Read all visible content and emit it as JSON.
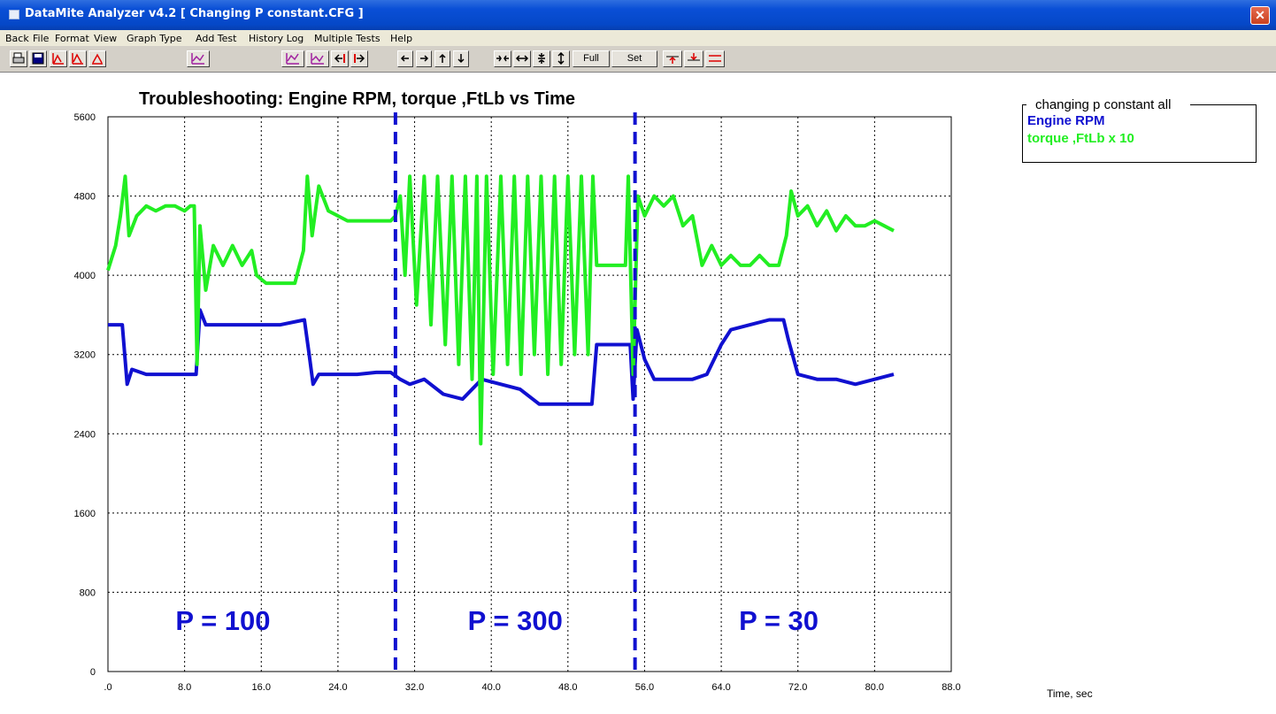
{
  "window": {
    "title": "DataMite Analyzer v4.2  [ Changing P constant.CFG ]",
    "close_glyph": "✕"
  },
  "menu": [
    "Back",
    "File",
    "Format",
    "View",
    "Graph Type",
    "Add Test",
    "History Log",
    "Multiple Tests",
    "Help"
  ],
  "toolbar": {
    "full_view_label": "Full View",
    "set_scales_label": "Set Scales",
    "icons": [
      "print-icon",
      "save-icon",
      "graph-red-a-icon",
      "graph-red-b-icon",
      "graph-red-c-icon",
      "graph-purple-icon",
      "graph-zoom-a-icon",
      "graph-zoom-b-icon",
      "nav-left-bar-icon",
      "nav-right-bar-icon",
      "arrow-left-icon",
      "arrow-right-icon",
      "arrow-up-icon",
      "arrow-down-icon",
      "compress-horizontal-icon",
      "expand-horizontal-icon",
      "compress-vertical-icon",
      "expand-vertical-icon",
      "marker-a-icon",
      "marker-b-icon",
      "marker-c-icon"
    ]
  },
  "legend": {
    "title": "changing p constant   all",
    "entries": [
      {
        "label": "Engine RPM",
        "color": "#1010d0"
      },
      {
        "label": "torque ,FtLb x 10",
        "color": "#22ee22"
      }
    ]
  },
  "chart_data": {
    "type": "line",
    "title": "Troubleshooting: Engine RPM, torque ,FtLb vs Time",
    "xlabel": "Time, sec",
    "ylabel": "",
    "xlim": [
      0,
      88
    ],
    "ylim": [
      0,
      5600
    ],
    "x_ticks": [
      ".0",
      "8.0",
      "16.0",
      "24.0",
      "32.0",
      "40.0",
      "48.0",
      "56.0",
      "64.0",
      "72.0",
      "80.0",
      "88.0"
    ],
    "y_ticks": [
      "0",
      "800",
      "1600",
      "2400",
      "3200",
      "4000",
      "4800",
      "5600"
    ],
    "grid": true,
    "series": [
      {
        "name": "Engine RPM",
        "color": "#1010d0",
        "points": [
          [
            0,
            3500
          ],
          [
            1.5,
            3500
          ],
          [
            2,
            2900
          ],
          [
            2.5,
            3050
          ],
          [
            4,
            3000
          ],
          [
            6,
            3000
          ],
          [
            8,
            3000
          ],
          [
            9.2,
            3000
          ],
          [
            9.6,
            3650
          ],
          [
            10.2,
            3500
          ],
          [
            12,
            3500
          ],
          [
            14,
            3500
          ],
          [
            16,
            3500
          ],
          [
            18,
            3500
          ],
          [
            20.5,
            3550
          ],
          [
            21,
            3200
          ],
          [
            21.4,
            2900
          ],
          [
            22,
            3000
          ],
          [
            24,
            3000
          ],
          [
            26,
            3000
          ],
          [
            28,
            3020
          ],
          [
            29.5,
            3020
          ],
          [
            30.5,
            2950
          ],
          [
            31.5,
            2900
          ],
          [
            33,
            2950
          ],
          [
            35,
            2800
          ],
          [
            37,
            2750
          ],
          [
            39,
            2950
          ],
          [
            41,
            2900
          ],
          [
            43,
            2850
          ],
          [
            45,
            2700
          ],
          [
            47,
            2700
          ],
          [
            49,
            2700
          ],
          [
            50.5,
            2700
          ],
          [
            51,
            3300
          ],
          [
            53,
            3300
          ],
          [
            54.5,
            3300
          ],
          [
            54.8,
            2750
          ],
          [
            55.2,
            3450
          ],
          [
            56,
            3150
          ],
          [
            57,
            2950
          ],
          [
            59,
            2950
          ],
          [
            61,
            2950
          ],
          [
            62.5,
            3000
          ],
          [
            64,
            3300
          ],
          [
            65,
            3450
          ],
          [
            67,
            3500
          ],
          [
            69,
            3550
          ],
          [
            70.5,
            3550
          ],
          [
            71,
            3350
          ],
          [
            72,
            3000
          ],
          [
            74,
            2950
          ],
          [
            76,
            2950
          ],
          [
            78,
            2900
          ],
          [
            80,
            2950
          ],
          [
            82,
            3000
          ]
        ]
      },
      {
        "name": "torque ,FtLb x 10",
        "color": "#22ee22",
        "points": [
          [
            0,
            4050
          ],
          [
            0.8,
            4300
          ],
          [
            1.3,
            4600
          ],
          [
            1.8,
            5000
          ],
          [
            2.2,
            4400
          ],
          [
            3,
            4600
          ],
          [
            4,
            4700
          ],
          [
            5,
            4650
          ],
          [
            6,
            4700
          ],
          [
            7,
            4700
          ],
          [
            8,
            4650
          ],
          [
            8.6,
            4700
          ],
          [
            9,
            4700
          ],
          [
            9.3,
            3100
          ],
          [
            9.6,
            4500
          ],
          [
            10.2,
            3850
          ],
          [
            11,
            4300
          ],
          [
            12,
            4100
          ],
          [
            13,
            4300
          ],
          [
            14,
            4100
          ],
          [
            15,
            4250
          ],
          [
            15.5,
            4000
          ],
          [
            16.5,
            3920
          ],
          [
            18,
            3920
          ],
          [
            19.5,
            3920
          ],
          [
            20.4,
            4250
          ],
          [
            20.8,
            5000
          ],
          [
            21.3,
            4400
          ],
          [
            22,
            4900
          ],
          [
            23,
            4650
          ],
          [
            24,
            4600
          ],
          [
            25,
            4550
          ],
          [
            26,
            4550
          ],
          [
            27,
            4550
          ],
          [
            28,
            4550
          ],
          [
            29.5,
            4550
          ],
          [
            30,
            4600
          ],
          [
            30.5,
            4800
          ],
          [
            31,
            4000
          ],
          [
            31.5,
            5000
          ],
          [
            32.2,
            3700
          ],
          [
            33,
            5000
          ],
          [
            33.7,
            3500
          ],
          [
            34.4,
            5000
          ],
          [
            35.2,
            3300
          ],
          [
            35.9,
            5000
          ],
          [
            36.6,
            3100
          ],
          [
            37.3,
            5000
          ],
          [
            38,
            2950
          ],
          [
            38.5,
            5000
          ],
          [
            38.9,
            2300
          ],
          [
            39.5,
            5000
          ],
          [
            40.2,
            3000
          ],
          [
            41,
            5000
          ],
          [
            41.7,
            3100
          ],
          [
            42.4,
            5000
          ],
          [
            43.1,
            3000
          ],
          [
            43.8,
            5000
          ],
          [
            44.5,
            3200
          ],
          [
            45.2,
            5000
          ],
          [
            45.9,
            3000
          ],
          [
            46.6,
            5000
          ],
          [
            47.3,
            3100
          ],
          [
            48,
            5000
          ],
          [
            48.7,
            3200
          ],
          [
            49.4,
            5000
          ],
          [
            50.1,
            3200
          ],
          [
            50.6,
            5000
          ],
          [
            51,
            4100
          ],
          [
            52.5,
            4100
          ],
          [
            54,
            4100
          ],
          [
            54.3,
            5000
          ],
          [
            54.8,
            3000
          ],
          [
            55.3,
            4800
          ],
          [
            56,
            4600
          ],
          [
            57,
            4800
          ],
          [
            58,
            4700
          ],
          [
            59,
            4800
          ],
          [
            60,
            4500
          ],
          [
            61,
            4600
          ],
          [
            62,
            4100
          ],
          [
            63,
            4300
          ],
          [
            64,
            4100
          ],
          [
            65,
            4200
          ],
          [
            66,
            4100
          ],
          [
            67,
            4100
          ],
          [
            68,
            4200
          ],
          [
            69,
            4100
          ],
          [
            70,
            4100
          ],
          [
            70.8,
            4400
          ],
          [
            71.3,
            4850
          ],
          [
            72,
            4600
          ],
          [
            73,
            4700
          ],
          [
            74,
            4500
          ],
          [
            75,
            4650
          ],
          [
            76,
            4450
          ],
          [
            77,
            4600
          ],
          [
            78,
            4500
          ],
          [
            79,
            4500
          ],
          [
            80,
            4550
          ],
          [
            81,
            4500
          ],
          [
            82,
            4450
          ]
        ]
      }
    ],
    "markers": [
      30,
      55
    ],
    "annotations": [
      "P = 100",
      "P = 300",
      "P = 30"
    ],
    "annotation_x": [
      12,
      42.5,
      70
    ]
  }
}
